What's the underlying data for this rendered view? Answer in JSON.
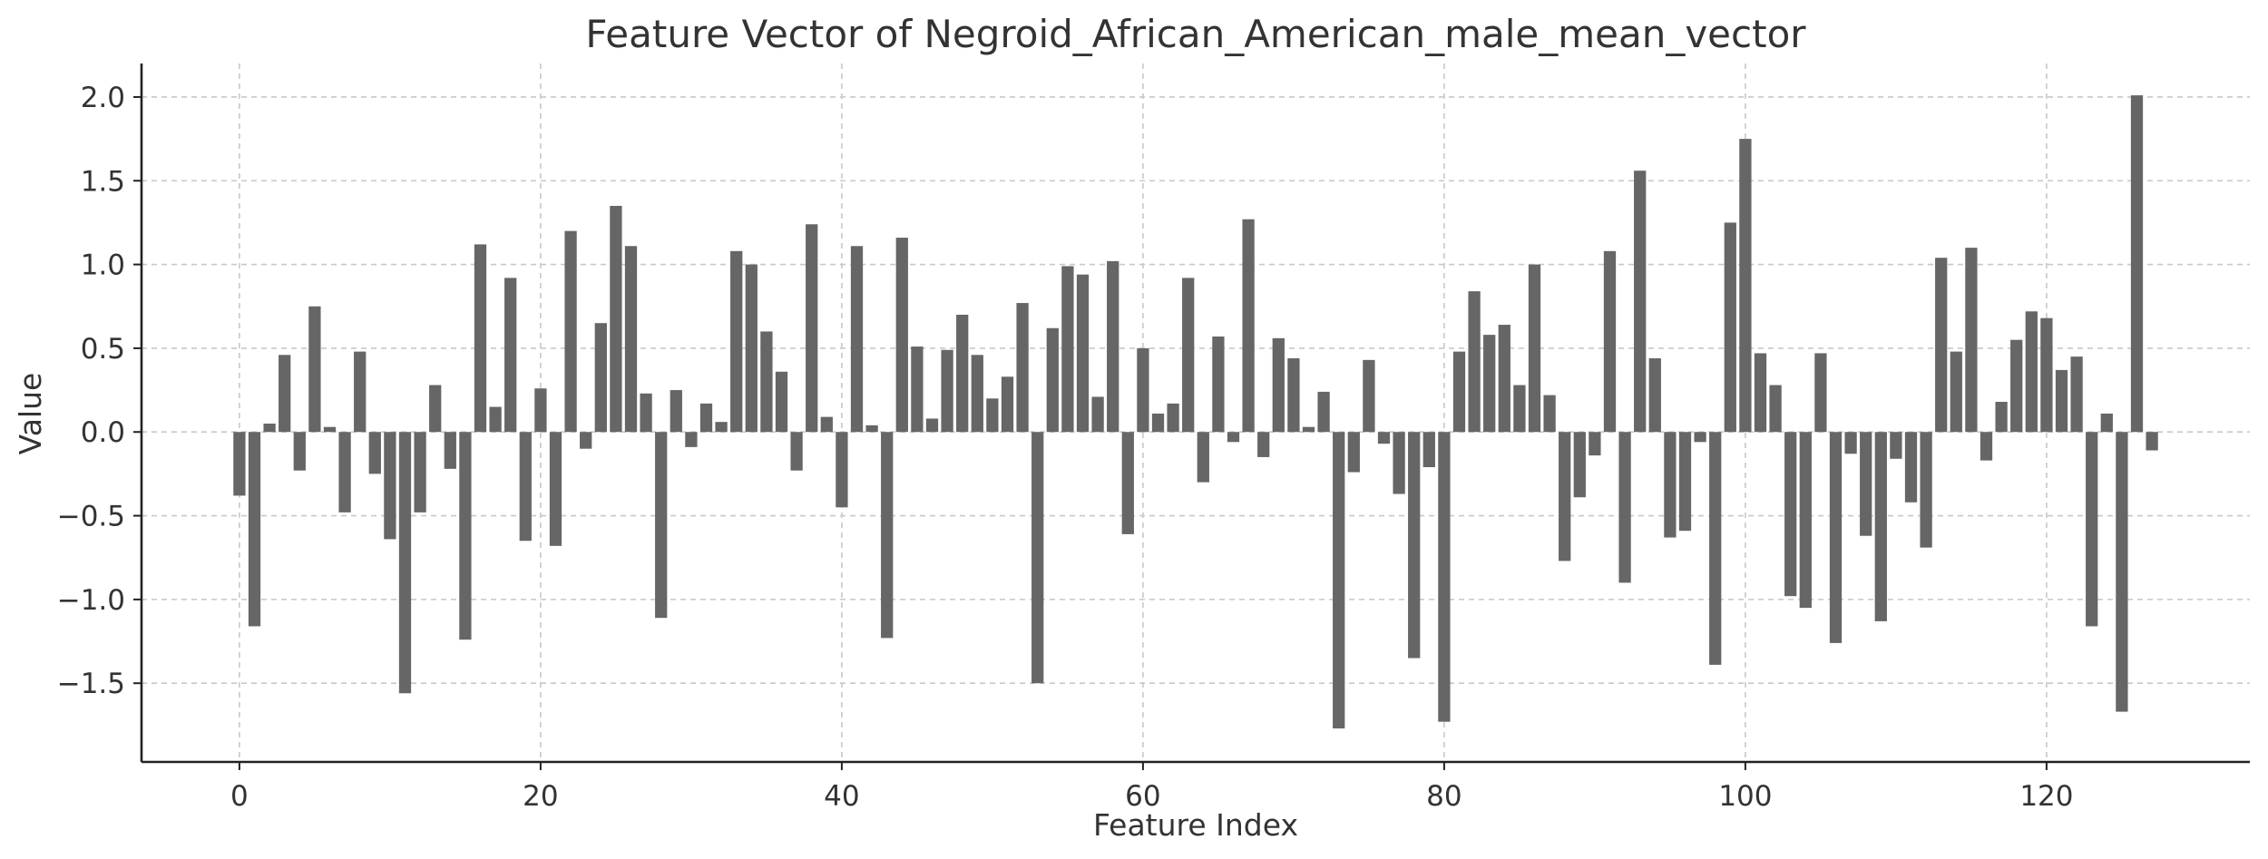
{
  "chart_data": {
    "type": "bar",
    "title": "Feature Vector of Negroid_African_American_male_mean_vector",
    "xlabel": "Feature Index",
    "ylabel": "Value",
    "xlim": [
      -6.5,
      133.5
    ],
    "ylim": [
      -1.97,
      2.2
    ],
    "xticks": [
      0,
      20,
      40,
      60,
      80,
      100,
      120
    ],
    "yticks": [
      -1.5,
      -1.0,
      -0.5,
      0.0,
      0.5,
      1.0,
      1.5,
      2.0
    ],
    "grid": true,
    "bar_color": "#666666",
    "values": [
      -0.38,
      -1.16,
      0.05,
      0.46,
      -0.23,
      0.75,
      0.03,
      -0.48,
      0.48,
      -0.25,
      -0.64,
      -1.56,
      -0.48,
      0.28,
      -0.22,
      -1.24,
      1.12,
      0.15,
      0.92,
      -0.65,
      0.26,
      -0.68,
      1.2,
      -0.1,
      0.65,
      1.35,
      1.11,
      0.23,
      -1.11,
      0.25,
      -0.09,
      0.17,
      0.06,
      1.08,
      1.0,
      0.6,
      0.36,
      -0.23,
      1.24,
      0.09,
      -0.45,
      1.11,
      0.04,
      -1.23,
      1.16,
      0.51,
      0.08,
      0.49,
      0.7,
      0.46,
      0.2,
      0.33,
      0.77,
      -1.5,
      0.62,
      0.99,
      0.94,
      0.21,
      1.02,
      -0.61,
      0.5,
      0.11,
      0.17,
      0.92,
      -0.3,
      0.57,
      -0.06,
      1.27,
      -0.15,
      0.56,
      0.44,
      0.03,
      0.24,
      -1.77,
      -0.24,
      0.43,
      -0.07,
      -0.37,
      -1.35,
      -0.21,
      -1.73,
      0.48,
      0.84,
      0.58,
      0.64,
      0.28,
      1.0,
      0.22,
      -0.77,
      -0.39,
      -0.14,
      1.08,
      -0.9,
      1.56,
      0.44,
      -0.63,
      -0.59,
      -0.06,
      -1.39,
      1.25,
      1.75,
      0.47,
      0.28,
      -0.98,
      -1.05,
      0.47,
      -1.26,
      -0.13,
      -0.62,
      -1.13,
      -0.16,
      -0.42,
      -0.69,
      1.04,
      0.48,
      1.1,
      -0.17,
      0.18,
      0.55,
      0.72,
      0.68,
      0.37,
      0.45,
      -1.16,
      0.11,
      -1.67,
      2.01,
      -0.11
    ]
  }
}
